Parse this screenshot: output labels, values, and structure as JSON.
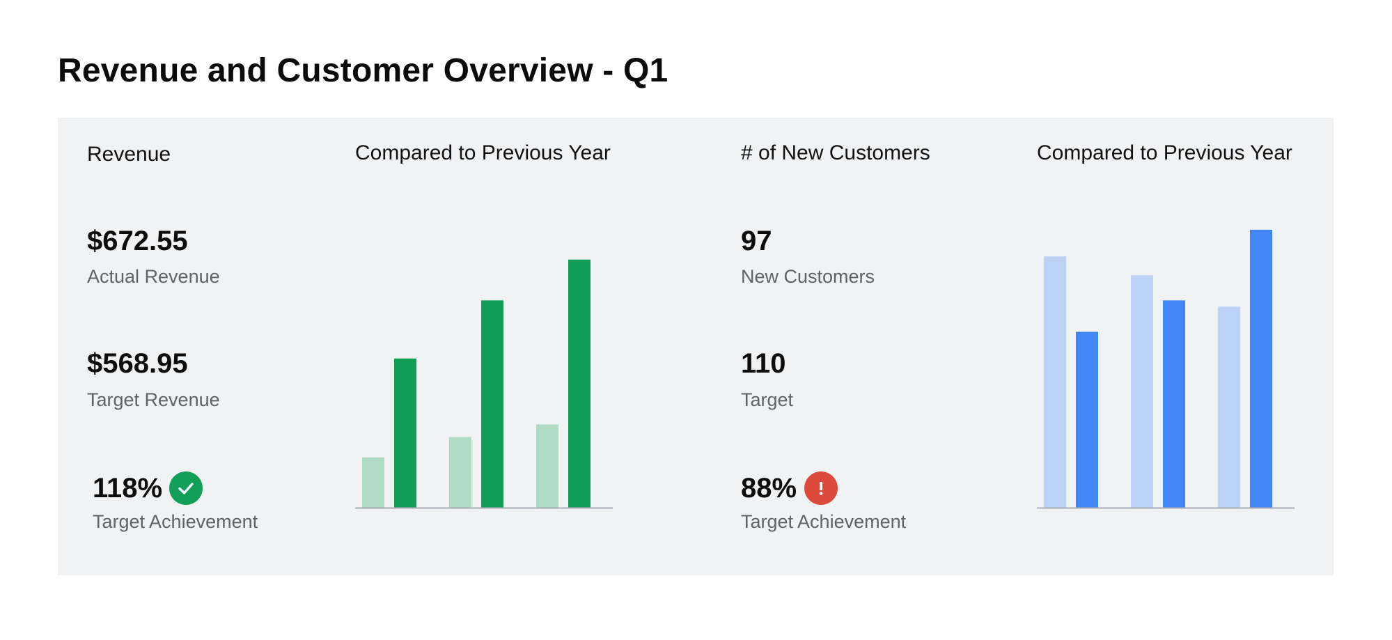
{
  "page": {
    "title": "Revenue and Customer Overview - Q1"
  },
  "revenue": {
    "heading": "Revenue",
    "actual_value": "$672.55",
    "actual_label": "Actual Revenue",
    "target_value": "$568.95",
    "target_label": "Target Revenue",
    "achievement_value": "118%",
    "achievement_label": "Target Achievement",
    "status_icon": "check-icon",
    "status_color": "#119e56"
  },
  "customers": {
    "heading": "# of New Customers",
    "actual_value": "97",
    "actual_label": "New Customers",
    "target_value": "110",
    "target_label": "Target",
    "achievement_value": "88%",
    "achievement_label": "Target Achievement",
    "status_icon": "exclamation-icon",
    "status_color": "#dd4a3c"
  },
  "chart_data": [
    {
      "type": "bar",
      "title": "Compared to Previous Year",
      "xlabel": "",
      "ylabel": "",
      "ylim": [
        0,
        100
      ],
      "categories": [
        "",
        "",
        ""
      ],
      "series": [
        {
          "values": [
            16,
            22.5,
            26.5
          ],
          "color": "#b0dbc4"
        },
        {
          "values": [
            47.5,
            66,
            79
          ],
          "color": "#109e56"
        }
      ],
      "grid": false,
      "axis_color": "#a8adb4"
    },
    {
      "type": "bar",
      "title": "Compared to Previous Year",
      "xlabel": "",
      "ylabel": "",
      "ylim": [
        0,
        100
      ],
      "categories": [
        "",
        "",
        ""
      ],
      "series": [
        {
          "values": [
            80,
            74,
            64
          ],
          "color": "#bcd1f6"
        },
        {
          "values": [
            56,
            66,
            88.5
          ],
          "color": "#4286f4"
        }
      ],
      "grid": false,
      "axis_color": "#a8adb4"
    }
  ]
}
